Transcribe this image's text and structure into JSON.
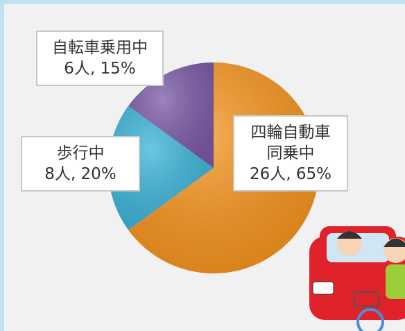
{
  "chart_data": {
    "type": "pie",
    "categories": [
      "四輪自動車同乗中",
      "歩行中",
      "自転車乗用中"
    ],
    "values": [
      65,
      20,
      15
    ],
    "value_labels": [
      "26人, 65%",
      "8人, 20%",
      "6人, 15%"
    ],
    "colors": [
      "#f7941d",
      "#3bb4d8",
      "#7b5aa6"
    ]
  }
}
